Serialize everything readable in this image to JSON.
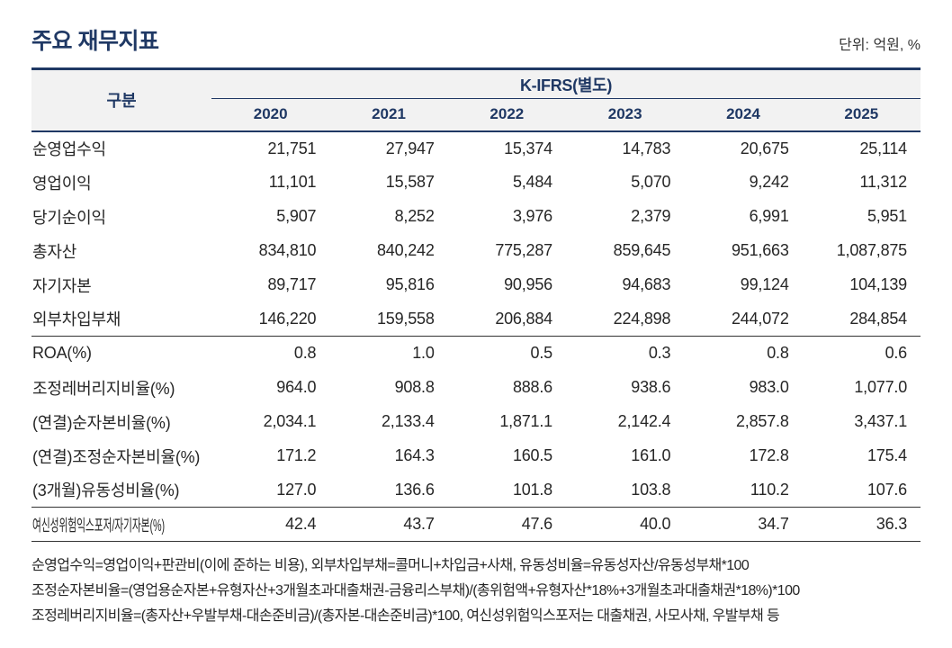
{
  "page": {
    "title": "주요 재무지표",
    "unit_label": "단위: 억원, %"
  },
  "table": {
    "corner_label": "구분",
    "group_header": "K-IFRS(별도)",
    "years": [
      "2020",
      "2021",
      "2022",
      "2023",
      "2024",
      "2025"
    ],
    "groups": [
      {
        "rows": [
          {
            "label": "순영업수익",
            "values": [
              "21,751",
              "27,947",
              "15,374",
              "14,783",
              "20,675",
              "25,114"
            ]
          },
          {
            "label": "영업이익",
            "values": [
              "11,101",
              "15,587",
              "5,484",
              "5,070",
              "9,242",
              "11,312"
            ]
          },
          {
            "label": "당기순이익",
            "values": [
              "5,907",
              "8,252",
              "3,976",
              "2,379",
              "6,991",
              "5,951"
            ]
          },
          {
            "label": "총자산",
            "values": [
              "834,810",
              "840,242",
              "775,287",
              "859,645",
              "951,663",
              "1,087,875"
            ]
          },
          {
            "label": "자기자본",
            "values": [
              "89,717",
              "95,816",
              "90,956",
              "94,683",
              "99,124",
              "104,139"
            ]
          },
          {
            "label": "외부차입부채",
            "values": [
              "146,220",
              "159,558",
              "206,884",
              "224,898",
              "244,072",
              "284,854"
            ]
          }
        ]
      },
      {
        "rows": [
          {
            "label": "ROA(%)",
            "values": [
              "0.8",
              "1.0",
              "0.5",
              "0.3",
              "0.8",
              "0.6"
            ]
          },
          {
            "label": "조정레버리지비율(%)",
            "values": [
              "964.0",
              "908.8",
              "888.6",
              "938.6",
              "983.0",
              "1,077.0"
            ]
          },
          {
            "label": "(연결)순자본비율(%)",
            "values": [
              "2,034.1",
              "2,133.4",
              "1,871.1",
              "2,142.4",
              "2,857.8",
              "3,437.1"
            ]
          },
          {
            "label": "(연결)조정순자본비율(%)",
            "values": [
              "171.2",
              "164.3",
              "160.5",
              "161.0",
              "172.8",
              "175.4"
            ]
          },
          {
            "label": "(3개월)유동성비율(%)",
            "values": [
              "127.0",
              "136.6",
              "101.8",
              "103.8",
              "110.2",
              "107.6"
            ]
          }
        ]
      },
      {
        "rows": [
          {
            "label": "여신성위험익스포저/자기자본(%)",
            "values": [
              "42.4",
              "43.7",
              "47.6",
              "40.0",
              "34.7",
              "36.3"
            ]
          }
        ]
      }
    ]
  },
  "footnotes": [
    "순영업수익=영업이익+판관비(이에 준하는 비용), 외부차입부채=콜머니+차입금+사채, 유동성비율=유동성자산/유동성부채*100",
    "조정순자본비율=(영업용순자본+유형자산+3개월초과대출채권-금융리스부채)/(총위험액+유형자산*18%+3개월초과대출채권*18%)*100",
    "조정레버리지비율=(총자산+우발부채-대손준비금)/(총자본-대손준비금)*100, 여신성위험익스포저는 대출채권, 사모사채, 우발부채 등"
  ],
  "colors": {
    "navy": "#1F3864",
    "header_bg": "#F2F2F2",
    "text": "#262626"
  }
}
